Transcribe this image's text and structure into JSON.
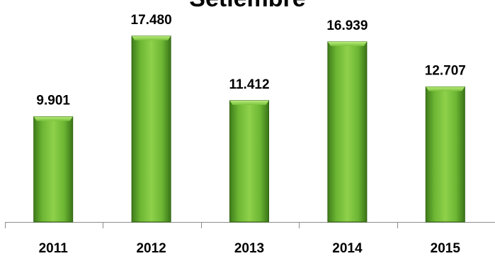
{
  "chart_data": {
    "type": "bar",
    "title": "Setiembre",
    "xlabel": "",
    "ylabel": "",
    "categories": [
      "2011",
      "2012",
      "2013",
      "2014",
      "2015"
    ],
    "values": [
      9901,
      17480,
      11412,
      16939,
      12707
    ],
    "data_labels": [
      "9.901",
      "17.480",
      "11.412",
      "16.939",
      "12.707"
    ],
    "ylim": [
      0,
      18000
    ],
    "grid": false,
    "legend": "none",
    "colors": {
      "bar_light": "#8fd14a",
      "bar_mid": "#5fa62a",
      "bar_dark": "#3a7417",
      "bar_border": "#2f6112",
      "axis": "#8c8c8c"
    }
  }
}
